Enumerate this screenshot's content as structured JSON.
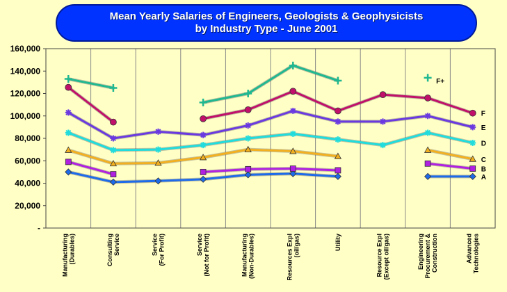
{
  "chart_data": {
    "type": "line",
    "title": "Mean Yearly Salaries of Engineers, Geologists & Geophysicists",
    "subtitle": "by Industry Type - June 2001",
    "xlabel": "",
    "ylabel": "",
    "ylim": [
      0,
      160000
    ],
    "yticks": [
      "-",
      "20,000",
      "40,000",
      "60,000",
      "80,000",
      "100,000",
      "120,000",
      "140,000",
      "160,000"
    ],
    "grid": {
      "vertical": true,
      "horizontal": false
    },
    "categories": [
      [
        "Manufacturing",
        "(Durables)"
      ],
      [
        "Consulting",
        "Service"
      ],
      [
        "Service",
        "(For Profit)"
      ],
      [
        "Service",
        "(Not for Profit)"
      ],
      [
        "Manufacturing",
        "(Non-Durables)"
      ],
      [
        "Resources Expl",
        "(oil/gas)"
      ],
      [
        "Utility"
      ],
      [
        "Resource Expl",
        "(Except oil/gas)"
      ],
      [
        "Engineering",
        "Procurement &",
        "Construction"
      ],
      [
        "Advanced",
        "Technologies"
      ]
    ],
    "series": [
      {
        "name": "A",
        "color": "#1E6BEA",
        "marker": "diamond",
        "values": [
          50000,
          41000,
          42000,
          43500,
          47500,
          48500,
          46000,
          null,
          46000,
          46000
        ]
      },
      {
        "name": "B",
        "color": "#B020E0",
        "marker": "square",
        "values": [
          59000,
          48000,
          null,
          50000,
          52500,
          53000,
          51500,
          null,
          57500,
          53000
        ]
      },
      {
        "name": "C",
        "color": "#F2B020",
        "marker": "triangle",
        "values": [
          69500,
          57500,
          58000,
          63000,
          70000,
          68500,
          64000,
          null,
          69500,
          61500
        ]
      },
      {
        "name": "D",
        "color": "#20DCDC",
        "marker": "star",
        "values": [
          85000,
          69500,
          70000,
          74000,
          80000,
          84000,
          79000,
          74000,
          85000,
          76000
        ]
      },
      {
        "name": "E",
        "color": "#6A3AE0",
        "marker": "star",
        "values": [
          103000,
          80000,
          86000,
          83000,
          91500,
          104500,
          95000,
          95000,
          100000,
          90000
        ]
      },
      {
        "name": "F",
        "color": "#C0106A",
        "marker": "circle",
        "values": [
          125500,
          94500,
          null,
          97500,
          105500,
          122000,
          104500,
          119000,
          116000,
          102500
        ]
      },
      {
        "name": "F+",
        "color": "#20B890",
        "marker": "plus",
        "values": [
          133000,
          125000,
          null,
          112000,
          120000,
          145000,
          131500,
          null,
          134000,
          null
        ]
      }
    ]
  }
}
